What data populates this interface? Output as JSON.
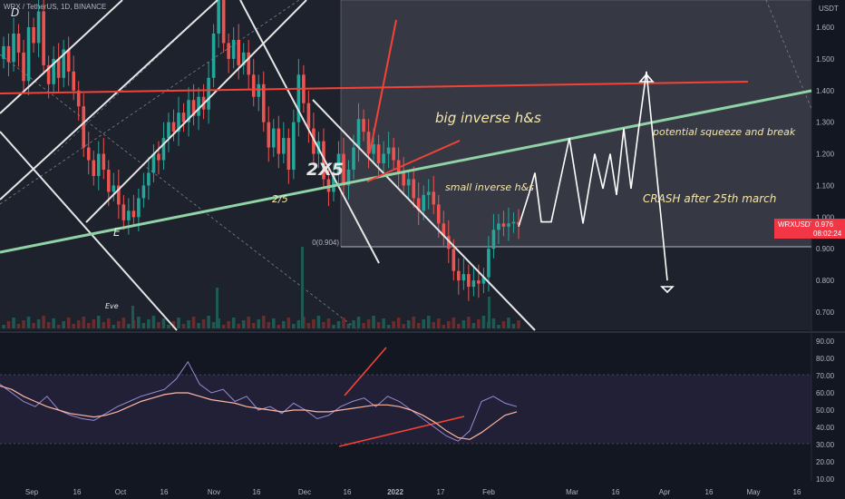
{
  "header": {
    "symbol_line": "WRX / TetherUS, 1D, BINANCE",
    "corner_label": "D",
    "currency": "USDT"
  },
  "annotations": {
    "big_ihs": "big inverse h&s",
    "small_ihs": "small inverse h&s",
    "squeeze": "potential squeeze and break",
    "crash": "CRASH after 25th march",
    "two_of_five_small": "2/5",
    "two_of_five_big": "2X5",
    "e_label": "E",
    "eve_label": "Eve",
    "fib_label": "0(0.904)"
  },
  "price_badge": {
    "ticker": "WRXUSDT",
    "price": "0.976",
    "countdown": "08:02:24",
    "color": "#f23645"
  },
  "colors": {
    "up": "#26a69a",
    "down": "#ef5350",
    "trendline_green": "#8fd3a6",
    "trendline_red": "#f44336",
    "rsi": "#7e57c2",
    "rsi_ma": "#ffb6a0"
  },
  "chart_data": [
    {
      "type": "candlestick",
      "title": "",
      "price_axis_ticks": [
        "1.600",
        "1.500",
        "1.400",
        "1.300",
        "1.200",
        "1.100",
        "1.000",
        "0.900",
        "0.800",
        "0.700"
      ],
      "time_axis_ticks": [
        "Sep",
        "16",
        "Oct",
        "16",
        "Nov",
        "16",
        "Dec",
        "16",
        "2022",
        "17",
        "Feb",
        "Mar",
        "16",
        "Apr",
        "16",
        "May",
        "16"
      ],
      "ylim": [
        0.66,
        1.7
      ],
      "key_levels": {
        "neckline_big": 1.42,
        "fib_zero": 0.904,
        "last_price": 0.976
      },
      "close_series": [
        1.54,
        1.49,
        1.58,
        1.52,
        1.43,
        1.6,
        1.55,
        1.65,
        1.48,
        1.42,
        1.5,
        1.44,
        1.53,
        1.46,
        1.4,
        1.35,
        1.22,
        1.18,
        1.13,
        1.2,
        1.15,
        1.08,
        1.1,
        1.04,
        0.99,
        1.02,
        1.0,
        1.06,
        1.1,
        1.14,
        1.2,
        1.18,
        1.25,
        1.3,
        1.27,
        1.33,
        1.3,
        1.37,
        1.32,
        1.38,
        1.34,
        1.44,
        1.58,
        1.75,
        1.55,
        1.5,
        1.56,
        1.48,
        1.52,
        1.45,
        1.38,
        1.42,
        1.3,
        1.22,
        1.28,
        1.2,
        1.25,
        1.15,
        1.3,
        1.45,
        1.36,
        1.28,
        1.2,
        1.24,
        1.12,
        1.08,
        1.14,
        1.2,
        1.1,
        1.15,
        1.22,
        1.31,
        1.27,
        1.2,
        1.23,
        1.17,
        1.2,
        1.22,
        1.18,
        1.14,
        1.1,
        1.12,
        1.06,
        1.02,
        1.07,
        1.08,
        1.04,
        0.98,
        0.94,
        0.9,
        0.83,
        0.8,
        0.82,
        0.78,
        0.8,
        0.79,
        0.81,
        0.9,
        0.96,
        0.98,
        0.97,
        0.98,
        0.985,
        0.976
      ],
      "projection_path": [
        0.97,
        1.07,
        1.14,
        0.985,
        0.985,
        1.25,
        0.98,
        1.2,
        1.09,
        1.2,
        1.07,
        1.28,
        1.09,
        1.27,
        1.46,
        0.8
      ],
      "volume_note": "bars along bottom of price pane"
    },
    {
      "type": "line",
      "title": "",
      "series": [
        {
          "values": [
            65,
            60,
            55,
            52,
            58,
            50,
            47,
            45,
            44,
            48,
            52,
            55,
            58,
            60,
            62,
            68,
            78,
            65,
            60,
            62,
            55,
            58,
            50,
            52,
            48,
            54,
            50,
            45,
            47,
            52,
            55,
            57,
            52,
            58,
            55,
            50,
            45,
            40,
            35,
            32,
            38,
            55,
            58,
            54,
            52
          ]
        },
        {
          "values": [
            64,
            62,
            58,
            55,
            52,
            50,
            48,
            47,
            46,
            47,
            49,
            52,
            55,
            57,
            59,
            60,
            60,
            58,
            56,
            55,
            54,
            52,
            51,
            50,
            49,
            50,
            50,
            49,
            49,
            50,
            51,
            52,
            53,
            53,
            52,
            50,
            47,
            43,
            38,
            34,
            33,
            37,
            42,
            47,
            49
          ]
        }
      ],
      "y_ticks": [
        "90.00",
        "80.00",
        "70.00",
        "60.00",
        "50.00",
        "40.00",
        "30.00",
        "20.00",
        "10.00"
      ],
      "ylim": [
        5,
        92
      ],
      "bands": [
        30,
        70
      ]
    }
  ]
}
